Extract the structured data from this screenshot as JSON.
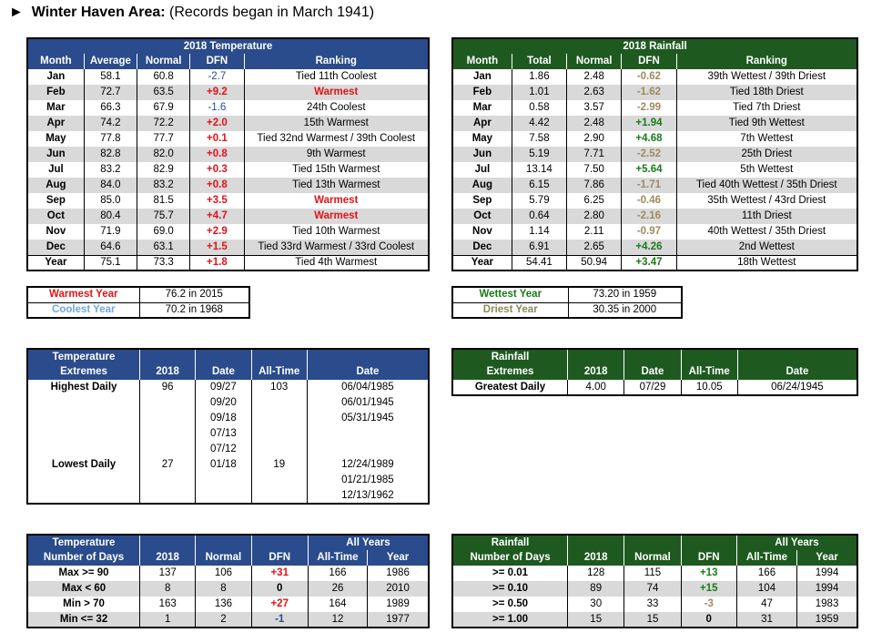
{
  "title": {
    "arrow": "►",
    "bold": "Winter Haven Area:",
    "rest": " (Records began in March 1941)"
  },
  "temp": {
    "caption": "2018 Temperature",
    "headers": [
      "Month",
      "Average",
      "Normal",
      "DFN",
      "Ranking"
    ],
    "rows": [
      [
        "Jan",
        "58.1",
        "60.8",
        "-2.7",
        "Tied 11th Coolest"
      ],
      [
        "Feb",
        "72.7",
        "63.5",
        "+9.2",
        "Warmest"
      ],
      [
        "Mar",
        "66.3",
        "67.9",
        "-1.6",
        "24th Coolest"
      ],
      [
        "Apr",
        "74.2",
        "72.2",
        "+2.0",
        "15th Warmest"
      ],
      [
        "May",
        "77.8",
        "77.7",
        "+0.1",
        "Tied 32nd Warmest / 39th Coolest"
      ],
      [
        "Jun",
        "82.8",
        "82.0",
        "+0.8",
        "9th Warmest"
      ],
      [
        "Jul",
        "83.2",
        "82.9",
        "+0.3",
        "Tied 15th Warmest"
      ],
      [
        "Aug",
        "84.0",
        "83.2",
        "+0.8",
        "Tied 13th Warmest"
      ],
      [
        "Sep",
        "85.0",
        "81.5",
        "+3.5",
        "Warmest"
      ],
      [
        "Oct",
        "80.4",
        "75.7",
        "+4.7",
        "Warmest"
      ],
      [
        "Nov",
        "71.9",
        "69.0",
        "+2.9",
        "Tied 10th Warmest"
      ],
      [
        "Dec",
        "64.6",
        "63.1",
        "+1.5",
        "Tied 33rd Warmest / 33rd Coolest"
      ],
      [
        "Year",
        "75.1",
        "73.3",
        "+1.8",
        "Tied 4th Warmest"
      ]
    ]
  },
  "rain": {
    "caption": "2018 Rainfall",
    "headers": [
      "Month",
      "Total",
      "Normal",
      "DFN",
      "Ranking"
    ],
    "rows": [
      [
        "Jan",
        "1.86",
        "2.48",
        "-0.62",
        "39th Wettest / 39th Driest"
      ],
      [
        "Feb",
        "1.01",
        "2.63",
        "-1.62",
        "Tied 18th Driest"
      ],
      [
        "Mar",
        "0.58",
        "3.57",
        "-2.99",
        "Tied 7th Driest"
      ],
      [
        "Apr",
        "4.42",
        "2.48",
        "+1.94",
        "Tied 9th Wettest"
      ],
      [
        "May",
        "7.58",
        "2.90",
        "+4.68",
        "7th Wettest"
      ],
      [
        "Jun",
        "5.19",
        "7.71",
        "-2.52",
        "25th Driest"
      ],
      [
        "Jul",
        "13.14",
        "7.50",
        "+5.64",
        "5th Wettest"
      ],
      [
        "Aug",
        "6.15",
        "7.86",
        "-1.71",
        "Tied 40th Wettest / 35th Driest"
      ],
      [
        "Sep",
        "5.79",
        "6.25",
        "-0.46",
        "35th Wettest / 43rd Driest"
      ],
      [
        "Oct",
        "0.64",
        "2.80",
        "-2.16",
        "11th Driest"
      ],
      [
        "Nov",
        "1.14",
        "2.11",
        "-0.97",
        "40th Wettest / 35th Driest"
      ],
      [
        "Dec",
        "6.91",
        "2.65",
        "+4.26",
        "2nd Wettest"
      ],
      [
        "Year",
        "54.41",
        "50.94",
        "+3.47",
        "18th Wettest"
      ]
    ]
  },
  "tempRecords": [
    {
      "label": "Warmest Year",
      "value": "76.2 in 2015"
    },
    {
      "label": "Coolest Year",
      "value": "70.2 in 1968"
    }
  ],
  "rainRecords": [
    {
      "label": "Wettest Year",
      "value": "73.20 in 1959"
    },
    {
      "label": "Driest Year",
      "value": "30.35 in 2000"
    }
  ],
  "tempExt": {
    "h1": "Temperature",
    "h2": "Extremes",
    "h3": "2018",
    "h4": "Date",
    "h5": "All-Time",
    "h6": "Date",
    "rows": [
      [
        "Highest Daily",
        "96",
        "09/27",
        "103",
        "06/04/1985"
      ],
      [
        "",
        "",
        "09/20",
        "",
        "06/01/1945"
      ],
      [
        "",
        "",
        "09/18",
        "",
        "05/31/1945"
      ],
      [
        "",
        "",
        "07/13",
        "",
        ""
      ],
      [
        "",
        "",
        "07/12",
        "",
        ""
      ],
      [
        "Lowest Daily",
        "27",
        "01/18",
        "19",
        "12/24/1989"
      ],
      [
        "",
        "",
        "",
        "",
        "01/21/1985"
      ],
      [
        "",
        "",
        "",
        "",
        "12/13/1962"
      ]
    ]
  },
  "rainExt": {
    "h1": "Rainfall",
    "h2": "Extremes",
    "h3": "2018",
    "h4": "Date",
    "h5": "All-Time",
    "h6": "Date",
    "row": [
      "Greatest Daily",
      "4.00",
      "07/29",
      "10.05",
      "06/24/1945"
    ]
  },
  "tempDays": {
    "h1": "Temperature",
    "h2": "Number of Days",
    "all": "All Years",
    "h3": "2018",
    "h4": "Normal",
    "h5": "DFN",
    "h6": "All-Time",
    "h7": "Year",
    "rows": [
      [
        "Max >= 90",
        "137",
        "106",
        "+31",
        "166",
        "1986"
      ],
      [
        "Max < 60",
        "8",
        "8",
        "0",
        "26",
        "2010"
      ],
      [
        "Min > 70",
        "163",
        "136",
        "+27",
        "164",
        "1989"
      ],
      [
        "Min <= 32",
        "1",
        "2",
        "-1",
        "12",
        "1977"
      ]
    ]
  },
  "rainDays": {
    "h1": "Rainfall",
    "h2": "Number of Days",
    "all": "All Years",
    "h3": "2018",
    "h4": "Normal",
    "h5": "DFN",
    "h6": "All-Time",
    "h7": "Year",
    "rows": [
      [
        ">= 0.01",
        "128",
        "115",
        "+13",
        "166",
        "1994"
      ],
      [
        ">= 0.10",
        "89",
        "74",
        "+15",
        "104",
        "1994"
      ],
      [
        ">= 0.50",
        "30",
        "33",
        "-3",
        "47",
        "1983"
      ],
      [
        ">= 1.00",
        "15",
        "15",
        "0",
        "31",
        "1959"
      ]
    ]
  },
  "colors": {
    "tempHeader": "#2a4b8c",
    "rainHeader": "#1e5a20",
    "warm": "#e0141a",
    "cool": "#2a4b8c",
    "wet": "#1a7a1a",
    "dry": "#a08a5c"
  }
}
